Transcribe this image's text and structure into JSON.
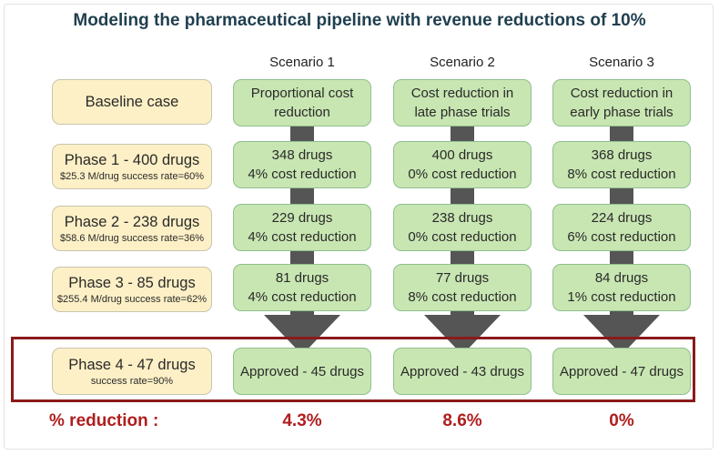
{
  "title": "Modeling the pharmaceutical pipeline with revenue reductions of 10%",
  "scenarios": [
    "Scenario 1",
    "Scenario 2",
    "Scenario 3"
  ],
  "baseline": {
    "header": "Baseline case",
    "phase1": {
      "main": "Phase 1 - 400 drugs",
      "sub": "$25.3 M/drug success rate=60%"
    },
    "phase2": {
      "main": "Phase 2 - 238 drugs",
      "sub": "$58.6 M/drug success rate=36%"
    },
    "phase3": {
      "main": "Phase 3 - 85 drugs",
      "sub": "$255.4 M/drug success rate=62%"
    },
    "phase4": {
      "main": "Phase 4 - 47 drugs",
      "sub": "success rate=90%"
    }
  },
  "scenario_cells": [
    {
      "header": [
        "Proportional cost",
        "reduction"
      ],
      "phase1": [
        "348 drugs",
        "4% cost reduction"
      ],
      "phase2": [
        "229 drugs",
        "4% cost reduction"
      ],
      "phase3": [
        "81 drugs",
        "4% cost reduction"
      ],
      "approved": "Approved - 45 drugs",
      "reduction": "4.3%"
    },
    {
      "header": [
        "Cost reduction in",
        "late phase trials"
      ],
      "phase1": [
        "400 drugs",
        "0% cost reduction"
      ],
      "phase2": [
        "238 drugs",
        "0% cost reduction"
      ],
      "phase3": [
        "77 drugs",
        "8% cost reduction"
      ],
      "approved": "Approved - 43 drugs",
      "reduction": "8.6%"
    },
    {
      "header": [
        "Cost reduction in",
        "early phase trials"
      ],
      "phase1": [
        "368 drugs",
        "8% cost reduction"
      ],
      "phase2": [
        "224 drugs",
        "6% cost reduction"
      ],
      "phase3": [
        "84 drugs",
        "1% cost reduction"
      ],
      "approved": "Approved - 47 drugs",
      "reduction": "0%"
    }
  ],
  "reduction_label": "% reduction :",
  "colors": {
    "baseline_fill": "#fdf0c6",
    "scenario_fill": "#c8e6b2",
    "arrow": "#555555",
    "highlight_border": "#8a1a1a",
    "reduction_text": "#b01e1e",
    "title_text": "#1f3f4f"
  }
}
